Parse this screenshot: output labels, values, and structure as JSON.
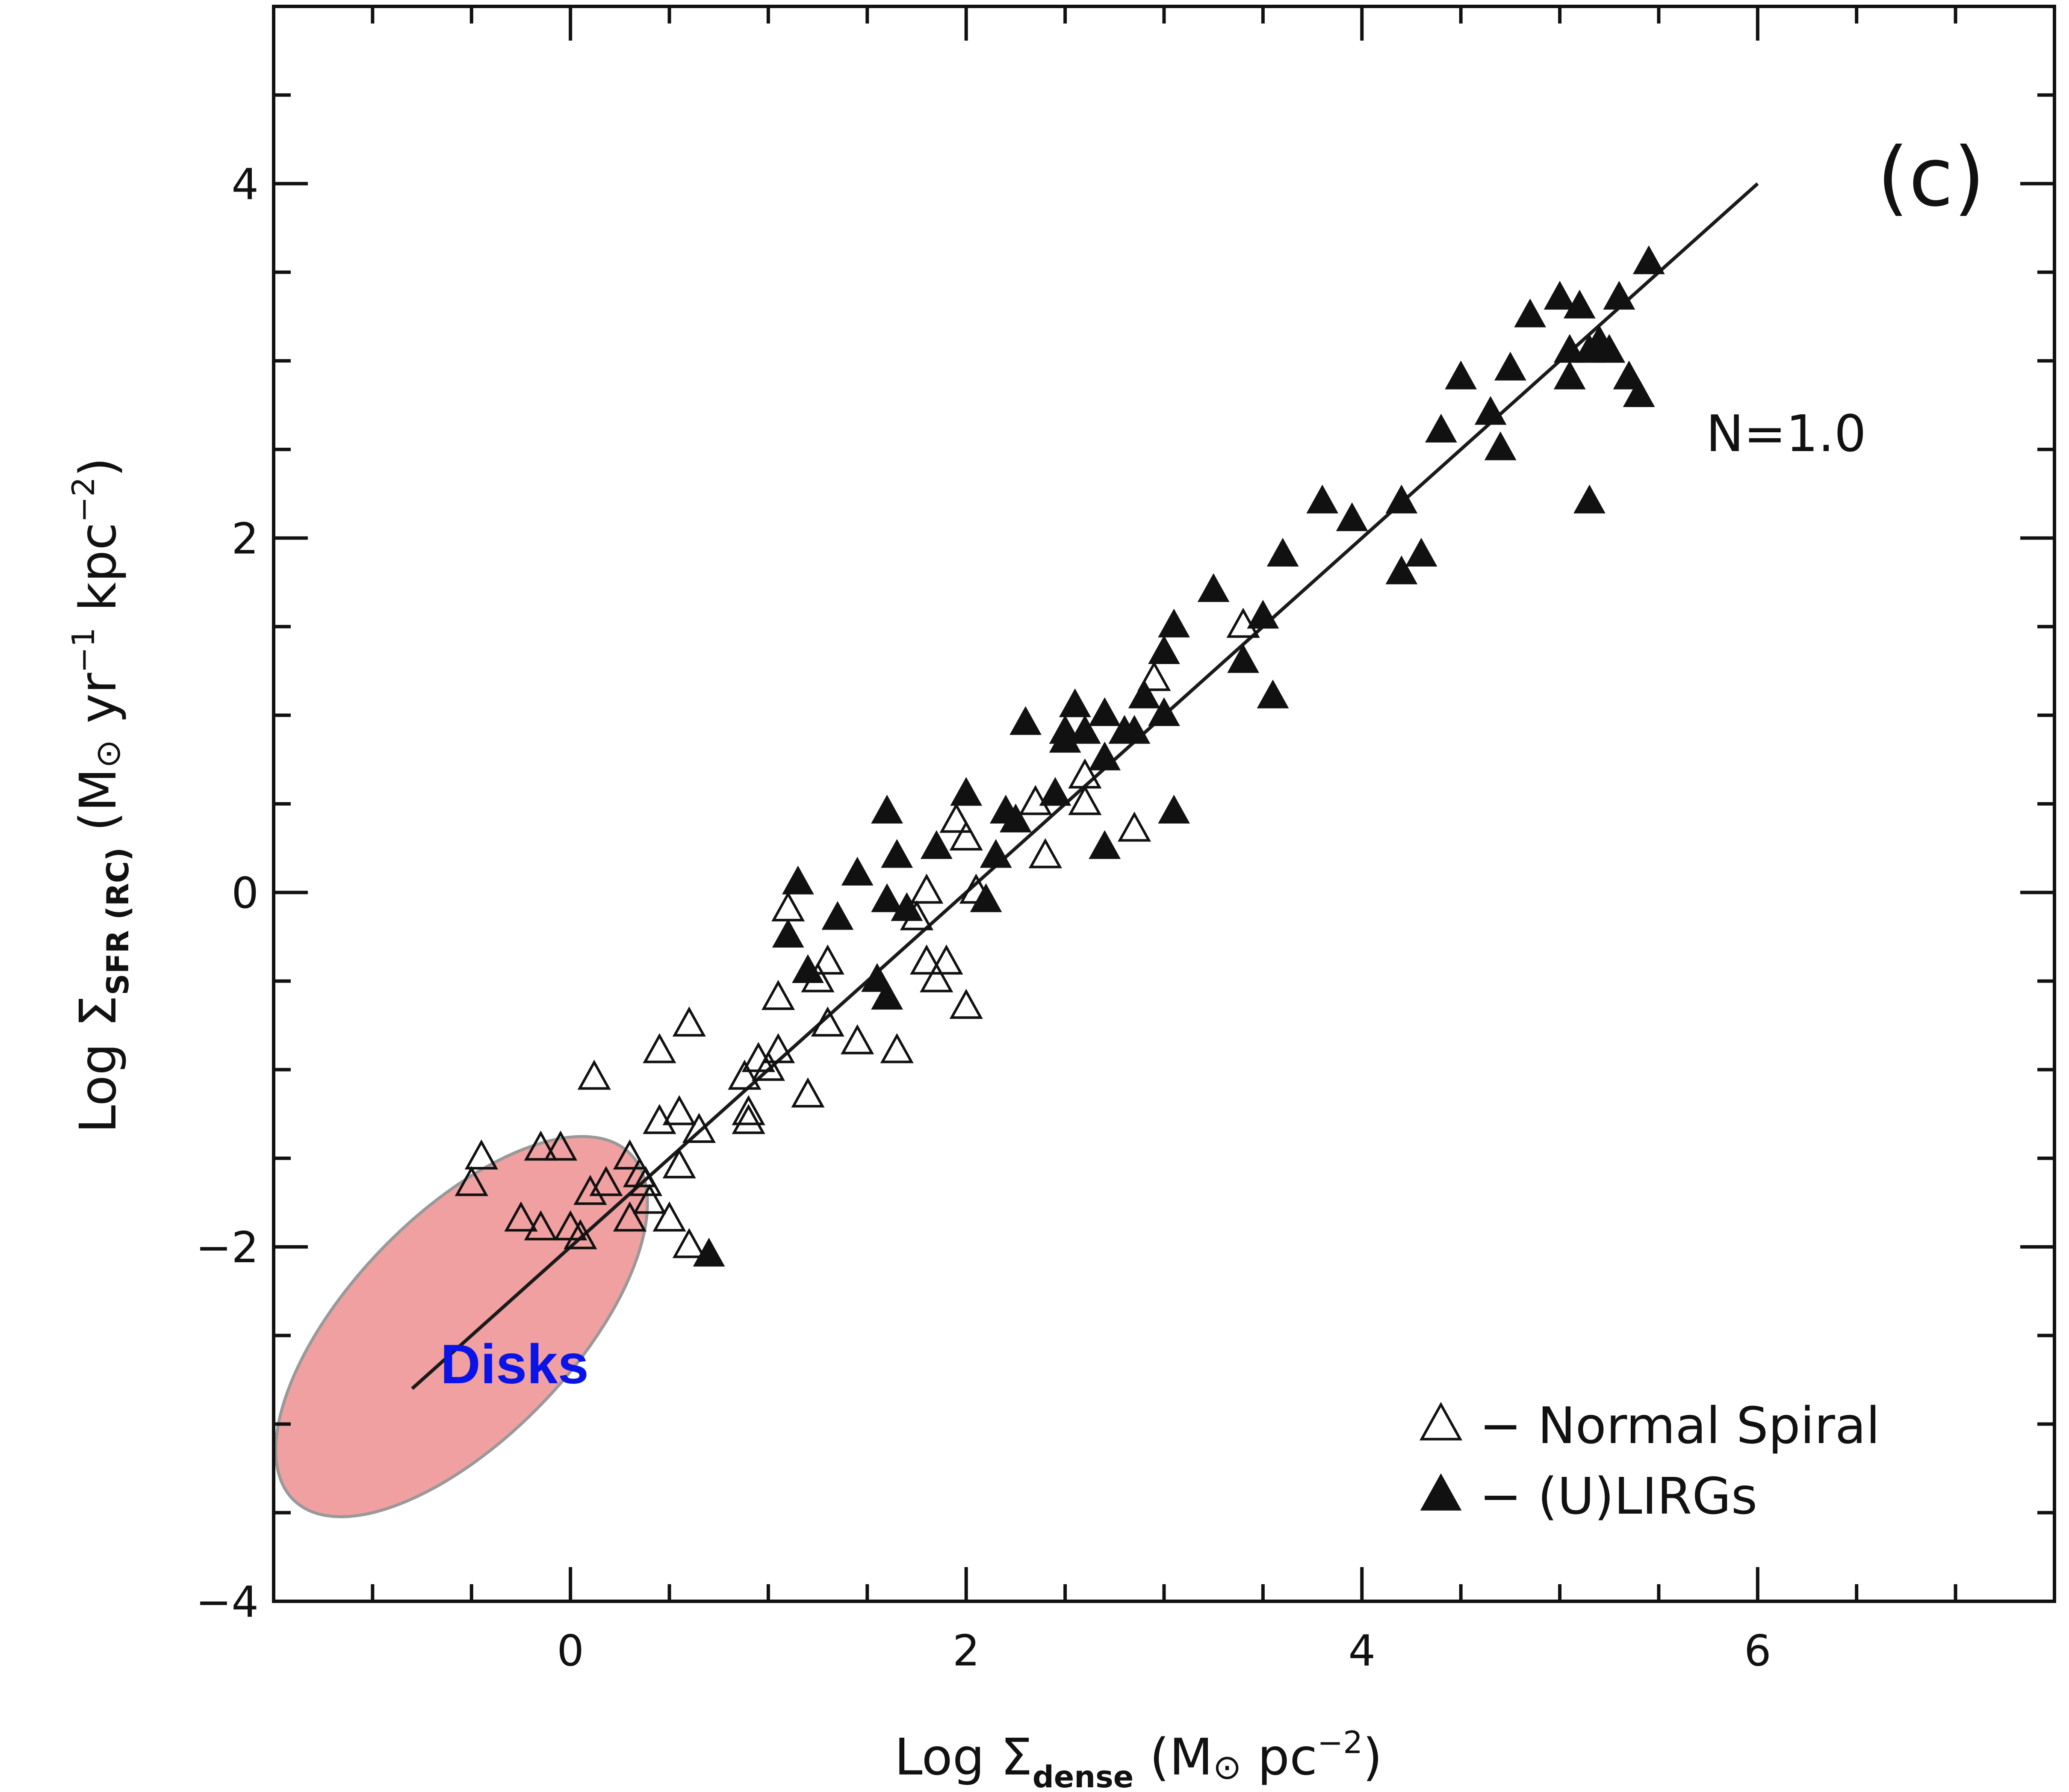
{
  "chart_data": {
    "type": "scatter",
    "panel_label": "(c)",
    "xlabel": {
      "prefix": "Log Σ",
      "sub": "dense",
      "suffix_open": " (M",
      "sun": "⊙",
      "suffix_mid": " pc",
      "sup": "−2",
      "suffix_close": ")"
    },
    "ylabel": {
      "prefix": "Log Σ",
      "sub": "SFR (RC)",
      "suffix_open": " (M",
      "sun": "⊙",
      "suffix_mid": " yr",
      "sup1": "−1",
      "suffix_mid2": " kpc",
      "sup2": "−2",
      "suffix_close": ")"
    },
    "xlim": [
      -1.5,
      7.5
    ],
    "ylim": [
      -4,
      5
    ],
    "x_ticks": [
      0,
      2,
      4,
      6
    ],
    "x_tick_labels": [
      "0",
      "2",
      "4",
      "6"
    ],
    "y_ticks": [
      -4,
      -2,
      0,
      2,
      4
    ],
    "y_tick_labels": [
      "−4",
      "−2",
      "0",
      "2",
      "4"
    ],
    "x_minor_step": 0.5,
    "y_minor_step": 0.5,
    "grid": false,
    "fit": {
      "label": "N=1.0",
      "slope": 1.0,
      "intercept": -2.0,
      "x_range": [
        -0.8,
        6.0
      ]
    },
    "region": {
      "label": "Disks",
      "label_color": "#0a14e6",
      "fill": "#f0a0a0",
      "stroke": "#999999",
      "center": [
        -0.55,
        -2.45
      ],
      "radii": [
        1.22,
        1.25
      ],
      "angle_deg": 46
    },
    "legend": {
      "placement": "bottom-right",
      "entries": [
        {
          "symbol": "open-triangle",
          "label": "− Normal Spiral"
        },
        {
          "symbol": "filled-triangle",
          "label": "− (U)LIRGs"
        }
      ]
    },
    "series": [
      {
        "name": "Normal Spiral",
        "marker": "open-triangle",
        "points": [
          [
            -0.45,
            -1.5
          ],
          [
            -0.5,
            -1.65
          ],
          [
            -0.25,
            -1.85
          ],
          [
            -0.15,
            -1.45
          ],
          [
            -0.05,
            -1.45
          ],
          [
            -0.15,
            -1.9
          ],
          [
            0,
            -1.9
          ],
          [
            0.05,
            -1.95
          ],
          [
            0.1,
            -1.7
          ],
          [
            0.12,
            -1.05
          ],
          [
            0.18,
            -1.65
          ],
          [
            0.3,
            -1.5
          ],
          [
            0.3,
            -1.85
          ],
          [
            0.35,
            -1.6
          ],
          [
            0.38,
            -1.65
          ],
          [
            0.4,
            -1.75
          ],
          [
            0.45,
            -1.3
          ],
          [
            0.5,
            -1.85
          ],
          [
            0.55,
            -1.25
          ],
          [
            0.55,
            -1.55
          ],
          [
            0.6,
            -2.0
          ],
          [
            0.65,
            -1.35
          ],
          [
            0.45,
            -0.9
          ],
          [
            0.6,
            -0.75
          ],
          [
            0.88,
            -1.05
          ],
          [
            0.9,
            -1.25
          ],
          [
            0.9,
            -1.3
          ],
          [
            0.95,
            -0.95
          ],
          [
            1.0,
            -1.0
          ],
          [
            1.05,
            -0.9
          ],
          [
            1.05,
            -0.6
          ],
          [
            1.2,
            -1.15
          ],
          [
            1.25,
            -0.5
          ],
          [
            1.3,
            -0.4
          ],
          [
            1.3,
            -0.75
          ],
          [
            1.45,
            -0.85
          ],
          [
            1.65,
            -0.9
          ],
          [
            1.1,
            -0.1
          ],
          [
            1.75,
            -0.15
          ],
          [
            1.8,
            0.0
          ],
          [
            1.8,
            -0.4
          ],
          [
            1.85,
            -0.5
          ],
          [
            1.9,
            -0.4
          ],
          [
            1.95,
            0.4
          ],
          [
            2.0,
            0.3
          ],
          [
            2.05,
            0.0
          ],
          [
            2.0,
            -0.65
          ],
          [
            2.35,
            0.5
          ],
          [
            2.4,
            0.2
          ],
          [
            2.6,
            0.5
          ],
          [
            2.6,
            0.65
          ],
          [
            2.85,
            0.35
          ],
          [
            2.95,
            1.2
          ],
          [
            3.4,
            1.5
          ]
        ]
      },
      {
        "name": "(U)LIRGs",
        "marker": "filled-triangle",
        "points": [
          [
            0.7,
            -2.05
          ],
          [
            1.15,
            0.05
          ],
          [
            1.1,
            -0.25
          ],
          [
            1.2,
            -0.45
          ],
          [
            1.35,
            -0.15
          ],
          [
            1.45,
            0.1
          ],
          [
            1.55,
            -0.5
          ],
          [
            1.6,
            -0.6
          ],
          [
            1.6,
            0.45
          ],
          [
            1.6,
            -0.05
          ],
          [
            1.65,
            0.2
          ],
          [
            1.7,
            -0.1
          ],
          [
            1.85,
            0.25
          ],
          [
            2.0,
            0.55
          ],
          [
            2.1,
            -0.05
          ],
          [
            2.15,
            0.2
          ],
          [
            2.2,
            0.45
          ],
          [
            2.25,
            0.4
          ],
          [
            2.3,
            0.95
          ],
          [
            2.45,
            0.55
          ],
          [
            2.5,
            0.85
          ],
          [
            2.5,
            0.9
          ],
          [
            2.55,
            1.05
          ],
          [
            2.6,
            0.9
          ],
          [
            2.7,
            0.25
          ],
          [
            2.7,
            0.75
          ],
          [
            2.7,
            1.0
          ],
          [
            2.8,
            0.9
          ],
          [
            2.85,
            0.9
          ],
          [
            2.9,
            1.1
          ],
          [
            3.0,
            1.35
          ],
          [
            3.0,
            1.0
          ],
          [
            3.05,
            0.45
          ],
          [
            3.05,
            1.5
          ],
          [
            3.25,
            1.7
          ],
          [
            3.4,
            1.3
          ],
          [
            3.5,
            1.55
          ],
          [
            3.55,
            1.1
          ],
          [
            3.6,
            1.9
          ],
          [
            3.8,
            2.2
          ],
          [
            3.95,
            2.1
          ],
          [
            4.2,
            2.2
          ],
          [
            4.2,
            1.8
          ],
          [
            4.3,
            1.9
          ],
          [
            4.4,
            2.6
          ],
          [
            4.5,
            2.9
          ],
          [
            4.65,
            2.7
          ],
          [
            4.7,
            2.5
          ],
          [
            4.75,
            2.95
          ],
          [
            4.85,
            3.25
          ],
          [
            5.0,
            3.35
          ],
          [
            5.05,
            3.05
          ],
          [
            5.05,
            2.9
          ],
          [
            5.1,
            3.3
          ],
          [
            5.15,
            3.05
          ],
          [
            5.15,
            2.2
          ],
          [
            5.2,
            3.1
          ],
          [
            5.25,
            3.05
          ],
          [
            5.3,
            3.35
          ],
          [
            5.35,
            2.9
          ],
          [
            5.4,
            2.8
          ],
          [
            5.45,
            3.55
          ]
        ]
      }
    ]
  }
}
